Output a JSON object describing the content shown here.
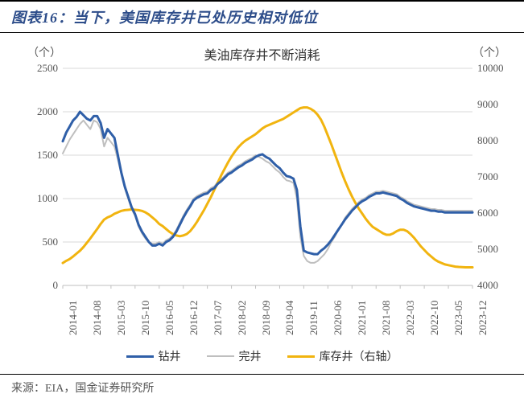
{
  "header": {
    "title": "图表16：当下，美国库存井已处历史相对低位"
  },
  "chart": {
    "type": "line",
    "title": "美油库存井不断消耗",
    "title_fontsize": 16,
    "left_axis": {
      "unit_label": "（个）",
      "min": 0,
      "max": 2500,
      "tick_step": 500,
      "ticks": [
        0,
        500,
        1000,
        1500,
        2000,
        2500
      ],
      "label_fontsize": 13,
      "label_color": "#555555"
    },
    "right_axis": {
      "unit_label": "（个）",
      "min": 4000,
      "max": 10000,
      "tick_step": 1000,
      "ticks": [
        4000,
        5000,
        6000,
        7000,
        8000,
        9000,
        10000
      ],
      "label_fontsize": 13,
      "label_color": "#555555"
    },
    "x_axis": {
      "labels": [
        "2014-01",
        "2014-08",
        "2015-03",
        "2015-10",
        "2016-05",
        "2016-12",
        "2017-07",
        "2018-02",
        "2018-09",
        "2019-04",
        "2019-11",
        "2020-06",
        "2021-01",
        "2021-08",
        "2022-03",
        "2022-10",
        "2023-05",
        "2023-12"
      ],
      "rotation_deg": -90,
      "label_fontsize": 13,
      "label_color": "#555555"
    },
    "grid": {
      "y_grid": true,
      "x_grid": false,
      "grid_color": "#d9d9d9",
      "grid_width": 1
    },
    "axis_line_color": "#bfbfbf",
    "background_color": "#ffffff",
    "plot_aspect": "wide",
    "series": [
      {
        "name": "钻井",
        "axis": "left",
        "color": "#2f5fa8",
        "line_width": 3,
        "marker": "none",
        "data": [
          1660,
          1760,
          1830,
          1900,
          1940,
          2000,
          1960,
          1920,
          1900,
          1950,
          1950,
          1870,
          1700,
          1800,
          1750,
          1700,
          1500,
          1300,
          1140,
          1020,
          900,
          820,
          700,
          620,
          560,
          500,
          460,
          460,
          480,
          460,
          500,
          520,
          560,
          620,
          700,
          780,
          850,
          910,
          980,
          1010,
          1030,
          1050,
          1060,
          1100,
          1120,
          1170,
          1200,
          1240,
          1280,
          1300,
          1330,
          1360,
          1380,
          1410,
          1430,
          1450,
          1480,
          1500,
          1510,
          1480,
          1460,
          1420,
          1380,
          1350,
          1300,
          1260,
          1250,
          1230,
          1100,
          680,
          400,
          380,
          370,
          360,
          360,
          400,
          430,
          470,
          520,
          580,
          640,
          700,
          760,
          810,
          860,
          900,
          940,
          970,
          990,
          1020,
          1040,
          1060,
          1060,
          1070,
          1060,
          1050,
          1040,
          1030,
          1000,
          980,
          950,
          930,
          910,
          900,
          890,
          880,
          870,
          860,
          860,
          850,
          850,
          840,
          840,
          840,
          840,
          840,
          840,
          840,
          840,
          840
        ]
      },
      {
        "name": "完井",
        "axis": "left",
        "color": "#bfbfbf",
        "line_width": 2,
        "marker": "none",
        "data": [
          1520,
          1600,
          1680,
          1740,
          1800,
          1860,
          1900,
          1850,
          1800,
          1900,
          1880,
          1800,
          1600,
          1700,
          1650,
          1600,
          1450,
          1280,
          1120,
          1000,
          880,
          800,
          680,
          600,
          540,
          500,
          480,
          480,
          500,
          480,
          520,
          540,
          580,
          640,
          720,
          800,
          870,
          930,
          1000,
          1030,
          1050,
          1070,
          1080,
          1120,
          1140,
          1190,
          1220,
          1260,
          1300,
          1320,
          1350,
          1380,
          1400,
          1430,
          1450,
          1470,
          1500,
          1480,
          1460,
          1430,
          1410,
          1370,
          1330,
          1300,
          1250,
          1210,
          1200,
          1180,
          1000,
          560,
          340,
          280,
          260,
          260,
          280,
          320,
          360,
          420,
          500,
          560,
          640,
          700,
          780,
          830,
          880,
          920,
          960,
          990,
          1010,
          1040,
          1060,
          1080,
          1080,
          1090,
          1080,
          1070,
          1060,
          1050,
          1020,
          1000,
          970,
          950,
          930,
          920,
          910,
          900,
          890,
          880,
          880,
          870,
          870,
          860,
          860,
          860,
          860,
          860,
          860,
          860,
          860,
          860
        ]
      },
      {
        "name": "库存井（右轴）",
        "axis": "right",
        "color": "#f1b40f",
        "line_width": 3,
        "marker": "none",
        "data": [
          4620,
          4680,
          4730,
          4800,
          4880,
          4960,
          5060,
          5180,
          5300,
          5430,
          5560,
          5700,
          5820,
          5880,
          5920,
          5980,
          6020,
          6060,
          6080,
          6090,
          6100,
          6090,
          6080,
          6060,
          6020,
          5960,
          5880,
          5800,
          5700,
          5640,
          5560,
          5480,
          5420,
          5380,
          5360,
          5380,
          5420,
          5500,
          5620,
          5760,
          5920,
          6080,
          6260,
          6440,
          6640,
          6840,
          7040,
          7220,
          7400,
          7560,
          7700,
          7820,
          7920,
          8000,
          8060,
          8120,
          8180,
          8260,
          8340,
          8400,
          8440,
          8480,
          8520,
          8560,
          8600,
          8660,
          8720,
          8780,
          8840,
          8900,
          8920,
          8920,
          8880,
          8820,
          8720,
          8580,
          8380,
          8140,
          7900,
          7640,
          7380,
          7120,
          6880,
          6660,
          6460,
          6280,
          6120,
          5980,
          5840,
          5720,
          5620,
          5560,
          5500,
          5440,
          5400,
          5400,
          5440,
          5500,
          5540,
          5540,
          5500,
          5420,
          5320,
          5200,
          5080,
          4980,
          4880,
          4800,
          4720,
          4660,
          4620,
          4580,
          4560,
          4540,
          4520,
          4510,
          4505,
          4500,
          4500,
          4500
        ]
      }
    ],
    "legend": {
      "position": "bottom",
      "items": [
        {
          "label": "钻井",
          "color": "#2f5fa8",
          "line_width": 3
        },
        {
          "label": "完井",
          "color": "#bfbfbf",
          "line_width": 2
        },
        {
          "label": "库存井（右轴）",
          "color": "#f1b40f",
          "line_width": 3
        }
      ],
      "fontsize": 14
    }
  },
  "footer": {
    "source_label": "来源：EIA，国金证券研究所"
  }
}
